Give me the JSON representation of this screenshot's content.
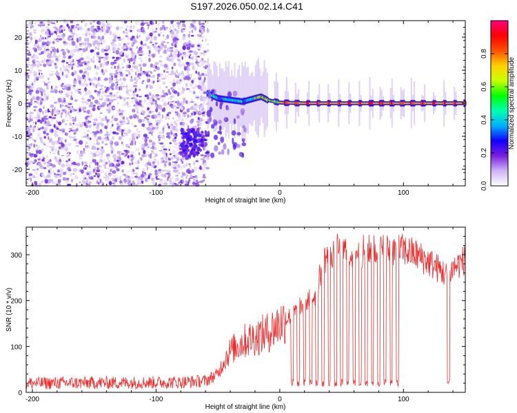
{
  "figure_title": "S197.2026.050.02.14.C41",
  "chart_data": [
    {
      "type": "heatmap",
      "title": "S197.2026.050.02.14.C41",
      "xlabel": "Height of straight line (km)",
      "ylabel": "Frequency (Hz)",
      "xlim": [
        -205,
        150
      ],
      "ylim": [
        -25,
        25
      ],
      "xticks": [
        -200,
        -100,
        0,
        100
      ],
      "yticks": [
        -20,
        -10,
        0,
        10,
        20
      ],
      "colorbar": {
        "label": "Normalized spectral amplitude",
        "range": [
          0,
          1
        ],
        "ticks": [
          "0.0",
          "0.2",
          "0.4",
          "0.6",
          "0.8"
        ],
        "colors": [
          "#ffffff",
          "#cdb4f5",
          "#7a1fe0",
          "#1200ff",
          "#00b0ff",
          "#00ffb0",
          "#00ff00",
          "#c8ff00",
          "#ffd200",
          "#ff5000",
          "#ff0000",
          "#ff0080"
        ]
      },
      "noise_region_km": [
        -205,
        -58
      ],
      "signal_onset_km": -58,
      "frequency_track": {
        "x": [
          -58,
          -50,
          -40,
          -30,
          -20,
          -15,
          -10,
          0,
          20,
          50,
          80,
          100,
          120,
          150
        ],
        "freq_hz": [
          3,
          1.5,
          1,
          0.5,
          1.5,
          2,
          1,
          0.2,
          0,
          0,
          0,
          0,
          0,
          0
        ]
      },
      "pulse_spacing_km": 8.5
    },
    {
      "type": "line",
      "xlabel": "Height of straight line (km)",
      "ylabel": "SNR (10 * v/v)",
      "xlim": [
        -205,
        150
      ],
      "ylim": [
        0,
        360
      ],
      "xticks": [
        -200,
        -100,
        0,
        100
      ],
      "yticks": [
        0,
        100,
        200,
        300
      ],
      "color": "#ee2b2b",
      "trend": {
        "x": [
          -205,
          -80,
          -60,
          -50,
          -45,
          -40,
          -30,
          -20,
          -10,
          0,
          10,
          20,
          30,
          35,
          45,
          60,
          80,
          100,
          110,
          120,
          128,
          135,
          140,
          150
        ],
        "snr": [
          20,
          22,
          25,
          40,
          70,
          90,
          110,
          120,
          130,
          150,
          170,
          195,
          215,
          290,
          310,
          305,
          310,
          310,
          300,
          285,
          270,
          255,
          270,
          290
        ]
      },
      "dropouts_km": [
        10,
        15,
        20,
        25,
        30,
        35,
        40,
        45,
        50,
        55,
        60,
        65,
        70,
        75,
        80,
        85,
        90,
        95,
        136.5
      ]
    }
  ]
}
